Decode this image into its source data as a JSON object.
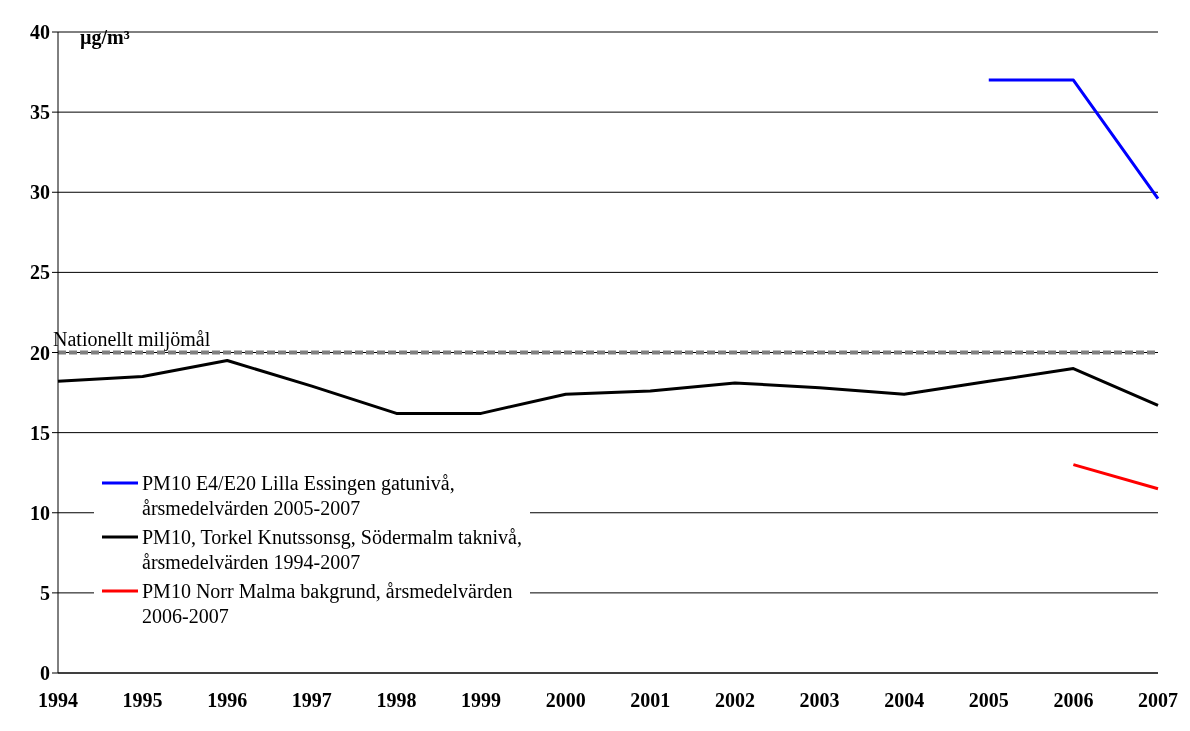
{
  "chart_data": {
    "type": "line",
    "ylabel": "µg/m³",
    "categories": [
      "1994",
      "1995",
      "1996",
      "1997",
      "1998",
      "1999",
      "2000",
      "2001",
      "2002",
      "2003",
      "2004",
      "2005",
      "2006",
      "2007"
    ],
    "series": [
      {
        "name": "PM10 E4/E20 Lilla Essingen gatunivå, årsmedelvärden 2005-2007",
        "color": "#0000ff",
        "values": [
          null,
          null,
          null,
          null,
          null,
          null,
          null,
          null,
          null,
          null,
          null,
          37.0,
          37.0,
          29.6
        ]
      },
      {
        "name": "PM10, Torkel Knutssonsg, Södermalm taknivå, årsmedelvärden 1994-2007",
        "color": "#000000",
        "values": [
          18.2,
          18.5,
          19.5,
          17.9,
          16.2,
          16.2,
          17.4,
          17.6,
          18.1,
          17.8,
          17.4,
          18.2,
          19.0,
          16.7
        ]
      },
      {
        "name": "PM10 Norr Malma bakgrund, årsmedelvärden 2006-2007",
        "color": "#ff0000",
        "values": [
          null,
          null,
          null,
          null,
          null,
          null,
          null,
          null,
          null,
          null,
          null,
          null,
          13.0,
          11.5
        ]
      }
    ],
    "ylim": [
      0,
      40
    ],
    "yticks": [
      0,
      5,
      10,
      15,
      20,
      25,
      30,
      35,
      40
    ],
    "grid": "y",
    "legend": "bottom left",
    "marker": "none",
    "line_style": "solid",
    "ref_lines": [
      {
        "axis": "y",
        "value": 20,
        "label": "Nationellt miljömål",
        "color": "#808080",
        "line_style": "dashed"
      }
    ]
  }
}
